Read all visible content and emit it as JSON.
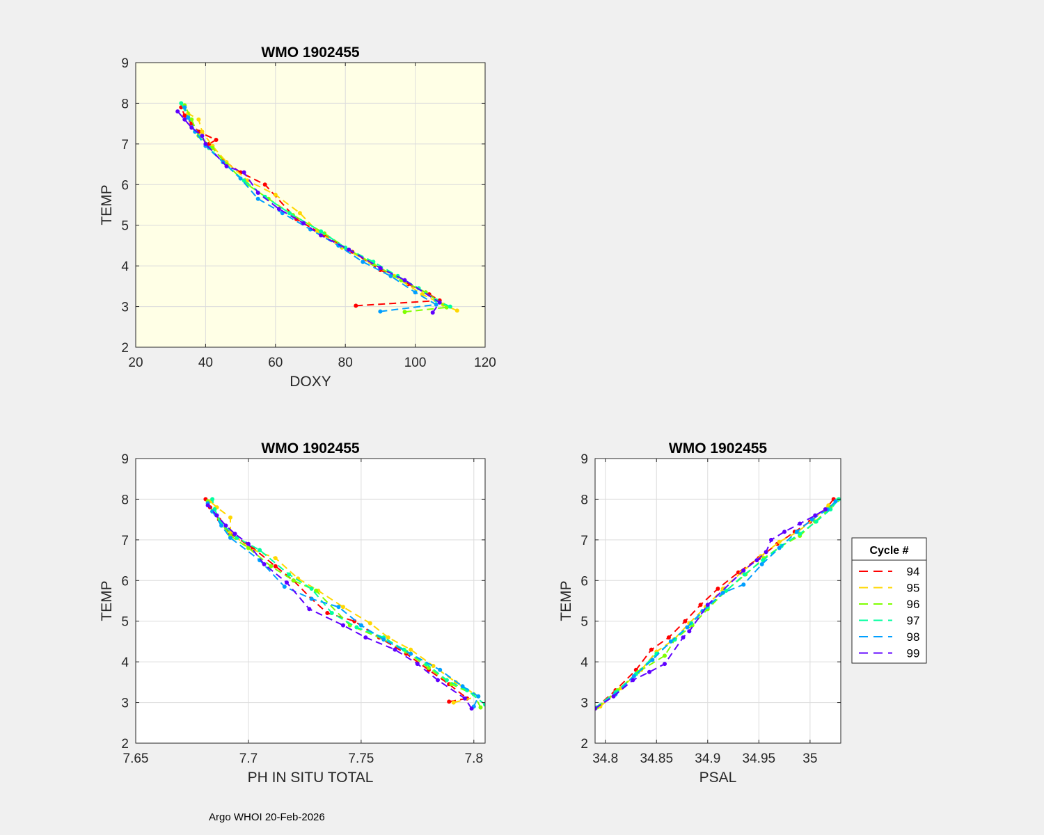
{
  "footer": "Argo WHOI 20-Feb-2026",
  "legend": {
    "title": "Cycle #",
    "entries": [
      {
        "label": "94",
        "color": "#ff0000"
      },
      {
        "label": "95",
        "color": "#ffd700"
      },
      {
        "label": "96",
        "color": "#7fff00"
      },
      {
        "label": "97",
        "color": "#00ff9f"
      },
      {
        "label": "98",
        "color": "#009fff"
      },
      {
        "label": "99",
        "color": "#5f00ff"
      }
    ]
  },
  "chart_data": [
    {
      "id": "doxy",
      "type": "line",
      "title": "WMO 1902455",
      "xlabel": "DOXY",
      "ylabel": "TEMP",
      "xlim": [
        20,
        120
      ],
      "ylim": [
        2,
        9
      ],
      "xticks": [
        20,
        40,
        60,
        80,
        100,
        120
      ],
      "xticklabels": [
        "20",
        "40",
        "60",
        "80",
        "100",
        "120"
      ],
      "yticks": [
        2,
        3,
        4,
        5,
        6,
        7,
        8,
        9
      ],
      "yticklabels": [
        "2",
        "3",
        "4",
        "5",
        "6",
        "7",
        "8",
        "9"
      ],
      "background": "#ffffe6",
      "grid": true,
      "series": [
        {
          "name": "94",
          "x": [
            83,
            107,
            104,
            98,
            90,
            82,
            74,
            66,
            57,
            50,
            45,
            41,
            43,
            38,
            36,
            34,
            33
          ],
          "y": [
            3.02,
            3.15,
            3.3,
            3.55,
            3.9,
            4.35,
            4.75,
            5.15,
            6.0,
            6.3,
            6.6,
            7.0,
            7.1,
            7.3,
            7.5,
            7.7,
            7.9
          ]
        },
        {
          "name": "95",
          "x": [
            112,
            108,
            102,
            94,
            87,
            79,
            72,
            67,
            60,
            52,
            46,
            42,
            39,
            38,
            35,
            34
          ],
          "y": [
            2.9,
            3.05,
            3.3,
            3.75,
            4.1,
            4.45,
            4.85,
            5.3,
            5.75,
            6.1,
            6.55,
            6.95,
            7.3,
            7.6,
            7.75,
            7.9
          ]
        },
        {
          "name": "96",
          "x": [
            97,
            109,
            103,
            96,
            88,
            81,
            74,
            65,
            58,
            52,
            46,
            42,
            38,
            36,
            34
          ],
          "y": [
            2.87,
            2.98,
            3.35,
            3.65,
            4.05,
            4.4,
            4.8,
            5.25,
            5.65,
            6.0,
            6.5,
            6.9,
            7.2,
            7.6,
            7.95
          ]
        },
        {
          "name": "97",
          "x": [
            110,
            106,
            101,
            95,
            88,
            80,
            73,
            64,
            57,
            51,
            45,
            41,
            37,
            35,
            33
          ],
          "y": [
            3.0,
            3.15,
            3.45,
            3.75,
            4.1,
            4.45,
            4.85,
            5.3,
            5.7,
            6.1,
            6.55,
            6.9,
            7.3,
            7.65,
            8.0
          ]
        },
        {
          "name": "98",
          "x": [
            90,
            106,
            100,
            93,
            85,
            78,
            70,
            62,
            55,
            50,
            45,
            40,
            37,
            35,
            34
          ],
          "y": [
            2.88,
            3.05,
            3.35,
            3.75,
            4.1,
            4.5,
            4.9,
            5.3,
            5.65,
            6.15,
            6.55,
            6.95,
            7.3,
            7.65,
            7.9
          ]
        },
        {
          "name": "99",
          "x": [
            105,
            107,
            97,
            90,
            81,
            73,
            68,
            61,
            55,
            51,
            46,
            40,
            39,
            36,
            34,
            32
          ],
          "y": [
            2.85,
            3.1,
            3.65,
            3.95,
            4.4,
            4.75,
            5.05,
            5.4,
            5.8,
            6.3,
            6.45,
            7.0,
            7.2,
            7.4,
            7.6,
            7.8
          ]
        }
      ]
    },
    {
      "id": "ph",
      "type": "line",
      "title": "WMO 1902455",
      "xlabel": "PH IN SITU TOTAL",
      "ylabel": "TEMP",
      "xlim": [
        7.65,
        7.805
      ],
      "ylim": [
        2,
        9
      ],
      "xticks": [
        7.65,
        7.7,
        7.75,
        7.8
      ],
      "xticklabels": [
        "7.65",
        "7.7",
        "7.75",
        "7.8"
      ],
      "yticks": [
        2,
        3,
        4,
        5,
        6,
        7,
        8,
        9
      ],
      "yticklabels": [
        "2",
        "3",
        "4",
        "5",
        "6",
        "7",
        "8",
        "9"
      ],
      "background": "#ffffff",
      "grid": true,
      "series": [
        {
          "name": "94",
          "x": [
            7.789,
            7.797,
            7.789,
            7.78,
            7.77,
            7.758,
            7.747,
            7.735,
            7.728,
            7.72,
            7.712,
            7.702,
            7.692,
            7.687,
            7.683,
            7.681
          ],
          "y": [
            3.02,
            3.1,
            3.45,
            3.8,
            4.2,
            4.6,
            5.0,
            5.2,
            5.55,
            6.0,
            6.35,
            6.8,
            7.15,
            7.5,
            7.8,
            8.0
          ]
        },
        {
          "name": "95",
          "x": [
            7.791,
            7.802,
            7.792,
            7.782,
            7.772,
            7.762,
            7.754,
            7.742,
            7.731,
            7.722,
            7.712,
            7.7,
            7.692,
            7.692,
            7.686,
            7.683
          ],
          "y": [
            3.0,
            3.15,
            3.5,
            3.9,
            4.3,
            4.6,
            4.95,
            5.35,
            5.75,
            6.05,
            6.55,
            6.8,
            7.2,
            7.55,
            7.8,
            7.95
          ]
        },
        {
          "name": "96",
          "x": [
            7.803,
            7.8,
            7.79,
            7.78,
            7.77,
            7.76,
            7.745,
            7.73,
            7.72,
            7.71,
            7.7,
            7.692,
            7.688,
            7.684,
            7.682
          ],
          "y": [
            2.88,
            3.2,
            3.45,
            3.85,
            4.25,
            4.55,
            4.9,
            5.75,
            6.0,
            6.35,
            6.8,
            7.1,
            7.4,
            7.7,
            7.95
          ]
        },
        {
          "name": "97",
          "x": [
            7.805,
            7.797,
            7.788,
            7.779,
            7.769,
            7.76,
            7.748,
            7.737,
            7.728,
            7.718,
            7.705,
            7.695,
            7.688,
            7.685,
            7.684
          ],
          "y": [
            2.95,
            3.3,
            3.55,
            3.95,
            4.3,
            4.6,
            4.85,
            5.2,
            5.8,
            6.15,
            6.75,
            7.05,
            7.4,
            7.75,
            8.0
          ]
        },
        {
          "name": "98",
          "x": [
            7.8,
            7.802,
            7.795,
            7.785,
            7.772,
            7.76,
            7.75,
            7.74,
            7.728,
            7.716,
            7.705,
            7.692,
            7.688,
            7.684,
            7.682
          ],
          "y": [
            2.9,
            3.15,
            3.4,
            3.8,
            4.2,
            4.55,
            4.9,
            5.35,
            5.55,
            5.85,
            6.5,
            7.05,
            7.35,
            7.7,
            7.9
          ]
        },
        {
          "name": "99",
          "x": [
            7.799,
            7.796,
            7.784,
            7.775,
            7.765,
            7.752,
            7.742,
            7.727,
            7.717,
            7.707,
            7.7,
            7.694,
            7.69,
            7.686,
            7.682
          ],
          "y": [
            2.85,
            3.1,
            3.55,
            3.95,
            4.3,
            4.6,
            4.9,
            5.3,
            5.95,
            6.4,
            6.9,
            7.15,
            7.35,
            7.6,
            7.85
          ]
        }
      ]
    },
    {
      "id": "psal",
      "type": "line",
      "title": "WMO 1902455",
      "xlabel": "PSAL",
      "ylabel": "TEMP",
      "xlim": [
        34.79,
        35.03
      ],
      "ylim": [
        2,
        9
      ],
      "xticks": [
        34.8,
        34.85,
        34.9,
        34.95,
        35.0
      ],
      "xticklabels": [
        "34.8",
        "34.85",
        "34.9",
        "34.95",
        "35"
      ],
      "yticks": [
        2,
        3,
        4,
        5,
        6,
        7,
        8,
        9
      ],
      "yticklabels": [
        "2",
        "3",
        "4",
        "5",
        "6",
        "7",
        "8",
        "9"
      ],
      "background": "#ffffff",
      "grid": true,
      "series": [
        {
          "name": "94",
          "x": [
            34.79,
            34.81,
            34.83,
            34.845,
            34.862,
            34.878,
            34.893,
            34.91,
            34.93,
            34.95,
            34.968,
            34.985,
            35.0,
            35.015,
            35.023
          ],
          "y": [
            2.85,
            3.3,
            3.8,
            4.3,
            4.6,
            5.0,
            5.4,
            5.8,
            6.2,
            6.55,
            6.9,
            7.2,
            7.45,
            7.75,
            8.0
          ]
        },
        {
          "name": "95",
          "x": [
            34.795,
            34.815,
            34.835,
            34.85,
            34.867,
            34.882,
            34.898,
            34.915,
            34.933,
            34.952,
            34.97,
            34.988,
            35.003,
            35.018
          ],
          "y": [
            2.9,
            3.35,
            3.8,
            4.25,
            4.55,
            4.95,
            5.35,
            5.8,
            6.2,
            6.6,
            6.95,
            7.2,
            7.5,
            7.85
          ]
        },
        {
          "name": "96",
          "x": [
            34.792,
            34.812,
            34.832,
            34.858,
            34.868,
            34.885,
            34.9,
            34.918,
            34.937,
            34.955,
            34.972,
            34.99,
            35.005,
            35.02,
            35.027
          ],
          "y": [
            2.88,
            3.3,
            3.75,
            4.15,
            4.55,
            4.9,
            5.3,
            5.75,
            6.15,
            6.55,
            6.85,
            7.1,
            7.45,
            7.8,
            7.98
          ]
        },
        {
          "name": "97",
          "x": [
            34.79,
            34.81,
            34.83,
            34.85,
            34.868,
            34.884,
            34.9,
            34.918,
            34.936,
            34.954,
            34.972,
            34.99,
            35.006,
            35.02,
            35.028
          ],
          "y": [
            2.87,
            3.25,
            3.7,
            4.2,
            4.55,
            4.95,
            5.35,
            5.75,
            6.15,
            6.5,
            6.85,
            7.15,
            7.45,
            7.75,
            8.0
          ]
        },
        {
          "name": "98",
          "x": [
            34.79,
            34.81,
            34.828,
            34.846,
            34.864,
            34.88,
            34.895,
            34.915,
            34.935,
            34.953,
            34.97,
            34.987,
            35.002,
            35.017,
            35.025
          ],
          "y": [
            2.86,
            3.2,
            3.65,
            4.05,
            4.5,
            4.85,
            5.25,
            5.7,
            5.9,
            6.4,
            6.8,
            7.2,
            7.5,
            7.75,
            7.95
          ]
        },
        {
          "name": "99",
          "x": [
            34.79,
            34.808,
            34.827,
            34.843,
            34.858,
            34.876,
            34.882,
            34.9,
            34.935,
            34.948,
            34.957,
            34.962,
            34.975,
            34.99,
            35.005,
            35.015
          ],
          "y": [
            2.85,
            3.15,
            3.55,
            3.75,
            3.95,
            4.6,
            4.75,
            5.4,
            6.25,
            6.5,
            6.7,
            7.0,
            7.2,
            7.4,
            7.6,
            7.75
          ]
        }
      ]
    }
  ]
}
